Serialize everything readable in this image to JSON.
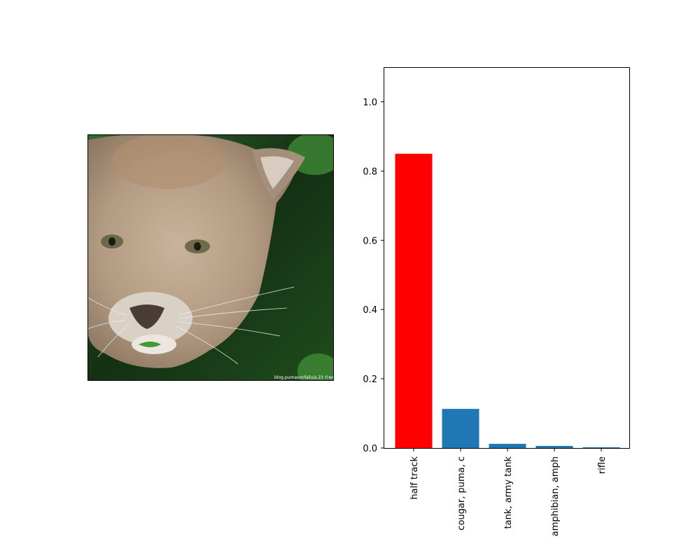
{
  "photo": {
    "subject": "cougar face close-up",
    "watermark": "blog.pumasonfalluis.23 ©www"
  },
  "colors": {
    "highlight_bar": "#ff0000",
    "default_bar": "#1f77b4"
  },
  "chart_data": {
    "type": "bar",
    "categories": [
      "half track",
      "cougar, puma, c",
      "tank, army tank",
      "amphibian, amph",
      "rifle"
    ],
    "values": [
      0.85,
      0.113,
      0.012,
      0.006,
      0.002
    ],
    "highlight_index": 0,
    "title": "",
    "xlabel": "",
    "ylabel": "",
    "ylim": [
      0,
      1.1
    ],
    "yticks": [
      "0.0",
      "0.2",
      "0.4",
      "0.6",
      "0.8",
      "1.0"
    ],
    "grid": false
  }
}
